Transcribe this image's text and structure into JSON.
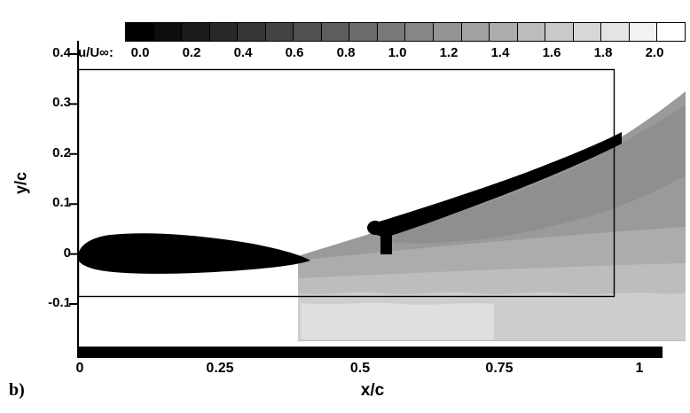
{
  "figure": {
    "panel_label": "b)",
    "x_axis_label": "x/c",
    "y_axis_label": "y/c"
  },
  "colorbar": {
    "label": "u/U∞:",
    "segments": 20,
    "min": 0.0,
    "max": 2.0,
    "min_color": "#000000",
    "max_color": "#ffffff",
    "ticks": [
      "0.0",
      "0.2",
      "0.4",
      "0.6",
      "0.8",
      "1.0",
      "1.2",
      "1.4",
      "1.6",
      "1.8",
      "2.0"
    ]
  },
  "axes": {
    "x_ticks": [
      "0",
      "0.25",
      "0.5",
      "0.75",
      "1"
    ],
    "y_ticks": [
      "0.4",
      "0.3",
      "0.2",
      "0.1",
      "0",
      "-0.1"
    ]
  },
  "chart_data": {
    "type": "heatmap",
    "field": "u/U∞",
    "title": "",
    "xlabel": "x/c",
    "ylabel": "y/c",
    "x_ticks": [
      0,
      0.25,
      0.5,
      0.75,
      1
    ],
    "y_ticks": [
      -0.1,
      0,
      0.1,
      0.2,
      0.3,
      0.4
    ],
    "xlim": [
      -0.005,
      1.09
    ],
    "ylim": [
      -0.2,
      0.46
    ],
    "colormap": "grayscale, black = 0.0 to white = 2.0",
    "levels": [
      0.0,
      0.2,
      0.4,
      0.6,
      0.8,
      1.0,
      1.2,
      1.4,
      1.6,
      1.8,
      2.0
    ],
    "masked_bodies": [
      {
        "name": "main-element-airfoil",
        "x": [
          0.0,
          0.41
        ],
        "y": [
          -0.045,
          0.035
        ],
        "value": 0
      },
      {
        "name": "flap-element",
        "x": [
          0.53,
          0.97
        ],
        "y": [
          0.05,
          0.245
        ],
        "value": 0
      }
    ],
    "field_region": {
      "x": [
        0.39,
        1.09
      ],
      "y": [
        -0.175,
        0.33
      ]
    },
    "approx_values": [
      {
        "x": 0.5,
        "y": -0.15,
        "u": 1.7
      },
      {
        "x": 0.7,
        "y": -0.15,
        "u": 1.6
      },
      {
        "x": 0.95,
        "y": -0.15,
        "u": 1.5
      },
      {
        "x": 0.5,
        "y": -0.05,
        "u": 1.3
      },
      {
        "x": 0.75,
        "y": 0.0,
        "u": 1.2
      },
      {
        "x": 1.0,
        "y": 0.05,
        "u": 1.1
      },
      {
        "x": 0.85,
        "y": 0.18,
        "u": 0.9
      },
      {
        "x": 1.05,
        "y": 0.3,
        "u": 1.0
      }
    ],
    "overlay_box": {
      "x": [
        -0.003,
        0.954
      ],
      "y": [
        -0.084,
        0.37
      ]
    },
    "wall_bar": {
      "y": -0.19,
      "x": [
        -0.003,
        1.04
      ]
    },
    "legend_position": "top colorbar"
  }
}
